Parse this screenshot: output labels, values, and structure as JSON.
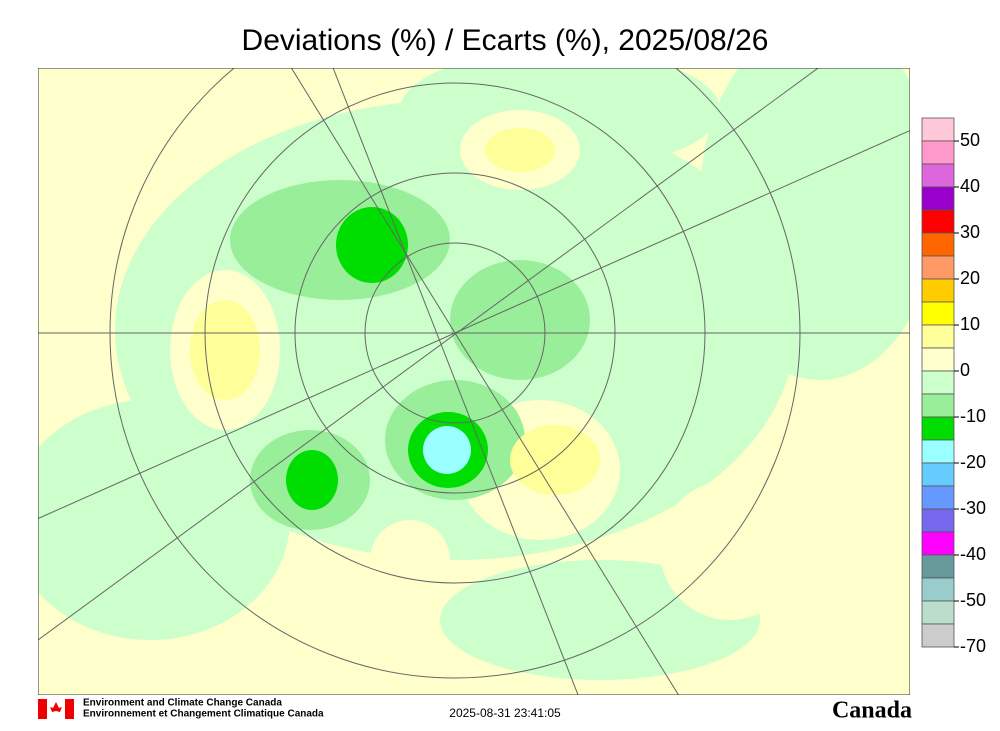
{
  "title": "Deviations (%) / Ecarts (%), 2025/08/26",
  "legend": {
    "colors": [
      "#ffc8d8",
      "#ff99cc",
      "#dd66dd",
      "#9900cc",
      "#ff0000",
      "#ff6600",
      "#ff9966",
      "#ffcc00",
      "#ffff00",
      "#ffff99",
      "#ffffcc",
      "#ccffcc",
      "#99ee99",
      "#00dd00",
      "#99ffff",
      "#66ccff",
      "#6699ff",
      "#7766ee",
      "#ff00ff",
      "#669999",
      "#99cccc",
      "#bbddcc",
      "#cccccc"
    ],
    "ticks": [
      50,
      40,
      30,
      20,
      10,
      0,
      -10,
      -20,
      -30,
      -40,
      -50,
      -70
    ]
  },
  "footer": {
    "agency_en": "Environment and Climate Change Canada",
    "agency_fr": "Environnement et Changement Climatique Canada",
    "timestamp": "2025-08-31 23:41:05",
    "wordmark": "Canada"
  }
}
